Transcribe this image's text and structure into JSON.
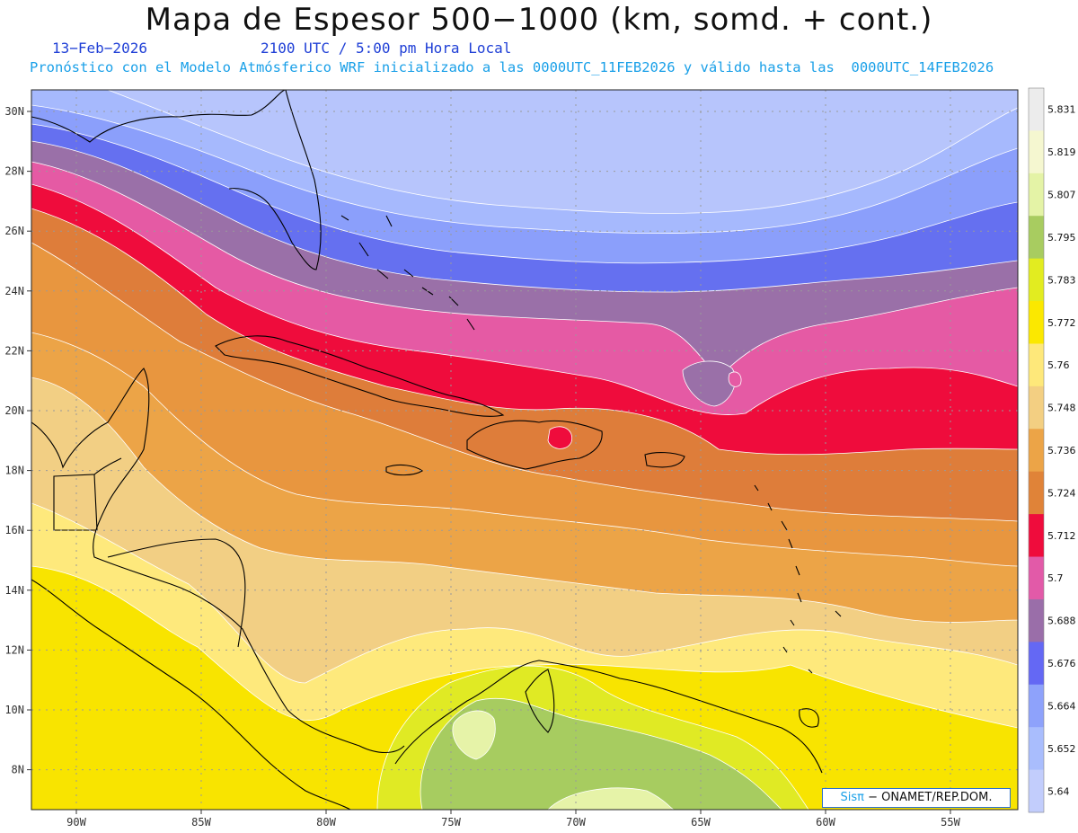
{
  "title": "Mapa de Espesor 500−1000 (km, somd. + cont.)",
  "date_label": "13−Feb−2026",
  "time_label": "2100 UTC / 5:00 pm Hora Local",
  "description": "Pronóstico con el Modelo Atmósferico WRF inicializado a las 0000UTC_11FEB2026 y válido hasta las  0000UTC_14FEB2026",
  "credit": {
    "brand": "Sisπ",
    "text": "− ONAMET/REP.DOM."
  },
  "lat_labels": [
    "30N",
    "28N",
    "26N",
    "24N",
    "22N",
    "20N",
    "18N",
    "16N",
    "14N",
    "12N",
    "10N",
    "8N"
  ],
  "lon_labels": [
    "90W",
    "85W",
    "80W",
    "75W",
    "70W",
    "65W",
    "60W",
    "55W"
  ],
  "colorbar": {
    "labels": [
      "5.831",
      "5.819",
      "5.807",
      "5.795",
      "5.783",
      "5.772",
      "5.76",
      "5.748",
      "5.736",
      "5.724",
      "5.712",
      "5.7",
      "5.688",
      "5.676",
      "5.664",
      "5.652",
      "5.64"
    ],
    "colors": [
      "#ececec",
      "#f5f7d0",
      "#e4f3a6",
      "#a8cc60",
      "#e2ec20",
      "#fbe800",
      "#fee87a",
      "#f3cf82",
      "#eca447",
      "#e08338",
      "#ef0c3c",
      "#e25aa8",
      "#9a6ea9",
      "#6468f4",
      "#8ea2fb",
      "#a9bdfd",
      "#c2cdfc"
    ]
  },
  "legend_colors": {
    "5.640": "#b7c5fc",
    "5.652": "#a6b9fd",
    "5.664": "#8b9ffb",
    "5.676": "#6570f0",
    "5.688": "#9a70a8",
    "5.700": "#e55aa4",
    "5.712": "#ef0c3c",
    "5.724": "#de7d3a",
    "5.736": "#e8963f",
    "5.748": "#eea84c",
    "5.760": "#f2cf84",
    "5.772": "#fee97c",
    "5.783": "#f8e400",
    "5.795": "#e0ea24",
    "5.807": "#a7cc60",
    "5.819": "#e6f3a8"
  }
}
